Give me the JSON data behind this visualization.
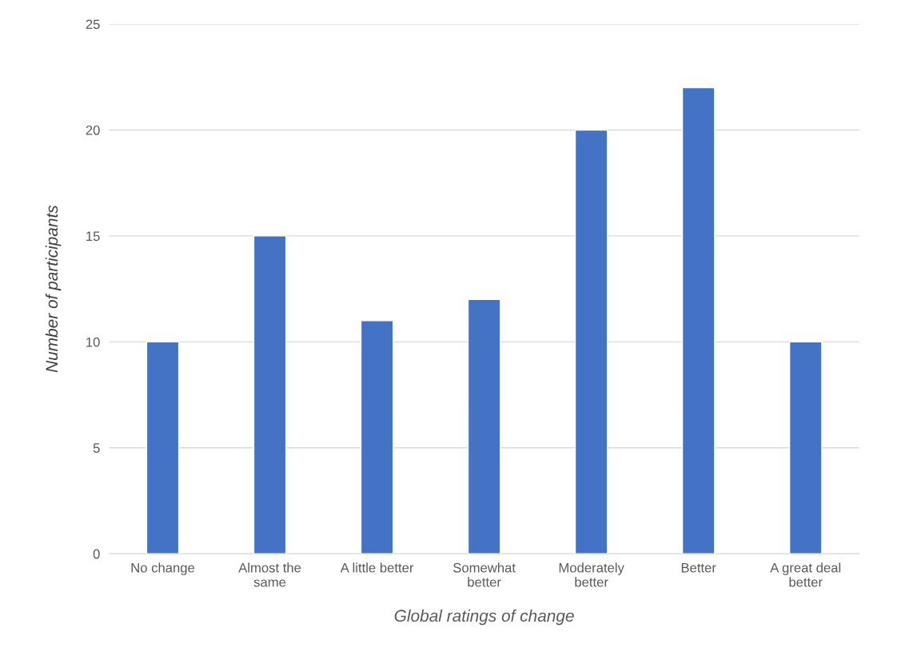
{
  "chart_data": {
    "type": "bar",
    "xlabel": "Global ratings of change",
    "ylabel": "Number of participants",
    "categories": [
      "No change",
      "Almost the\nsame",
      "A little better",
      "Somewhat\nbetter",
      "Moderately\nbetter",
      "Better",
      "A great deal\nbetter"
    ],
    "values": [
      10,
      15,
      11,
      12,
      20,
      22,
      10
    ],
    "color": "#4472c4",
    "ylim": [
      0,
      25
    ],
    "yticks": [
      0,
      5,
      10,
      15,
      20,
      25
    ],
    "grid": "y"
  }
}
